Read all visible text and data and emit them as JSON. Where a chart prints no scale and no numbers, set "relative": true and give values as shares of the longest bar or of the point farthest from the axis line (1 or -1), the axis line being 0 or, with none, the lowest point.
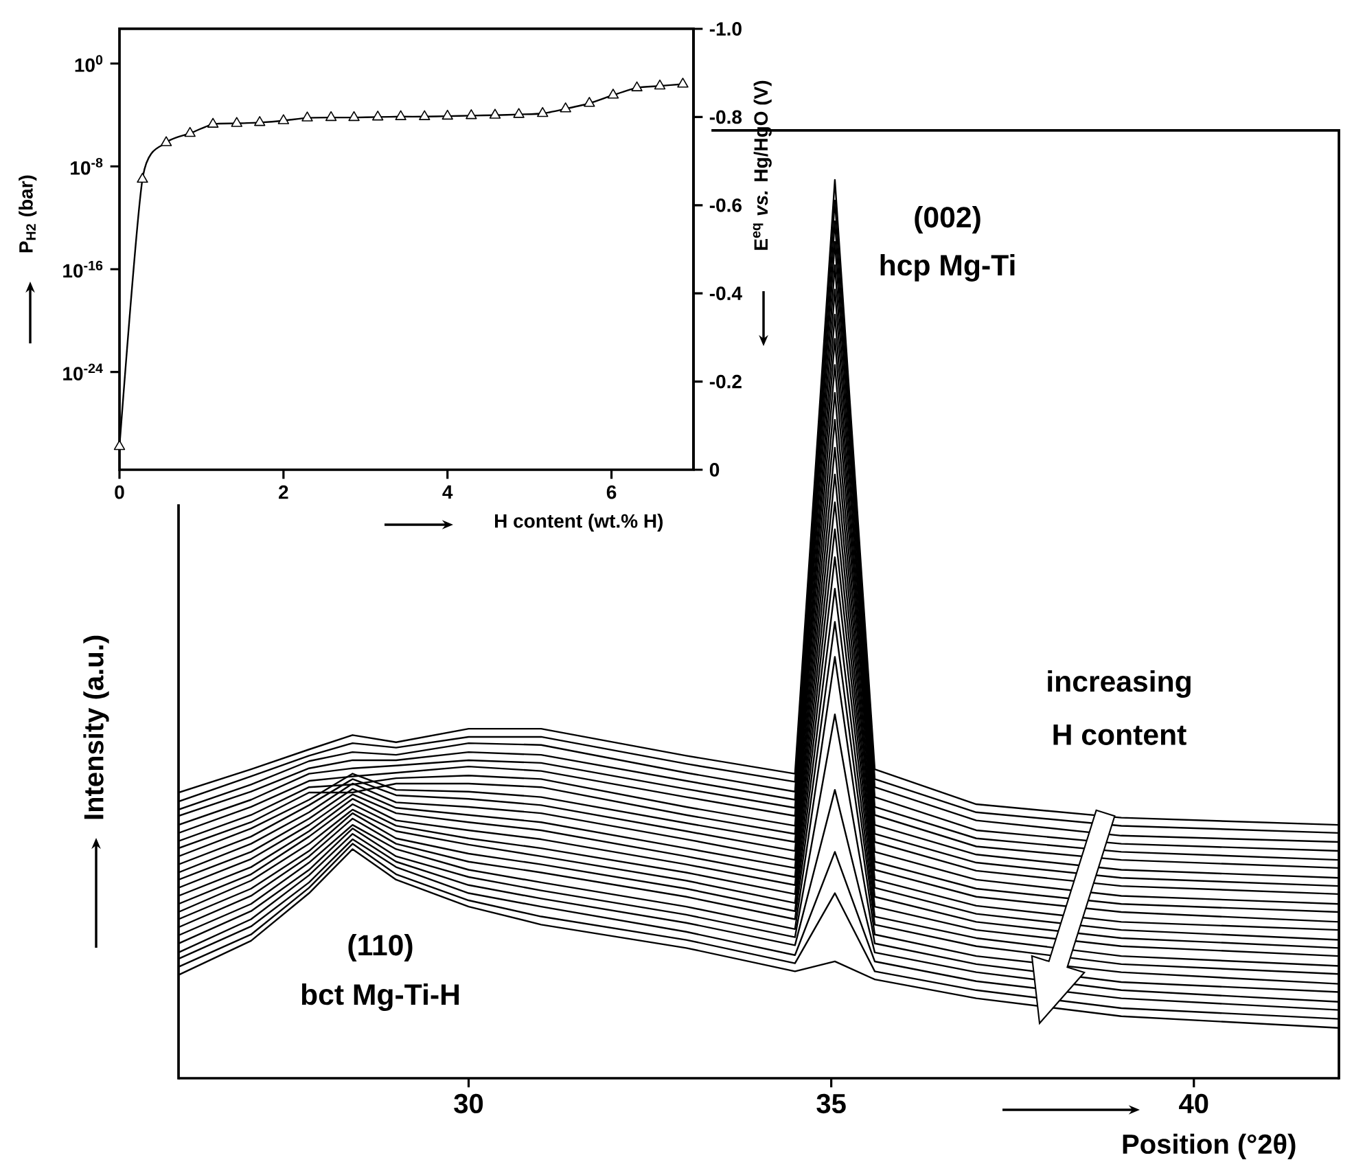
{
  "chart_data": [
    {
      "type": "line",
      "marker": "triangle",
      "log": "y",
      "xlabel": "H content (wt.% H)",
      "ylabel": "P$_{H2}$ (bar)",
      "y2label": "E$^{eq}$ *vs.* Hg/HgO (V)",
      "color": "#000000",
      "x": [
        0,
        0.28,
        0.57,
        0.86,
        1.14,
        1.43,
        1.71,
        2.0,
        2.29,
        2.58,
        2.86,
        3.15,
        3.43,
        3.72,
        4.0,
        4.29,
        4.58,
        4.87,
        5.16,
        5.44,
        5.73,
        6.02,
        6.31,
        6.59,
        6.87
      ],
      "values": [
        1.6e-30,
        1e-09,
        7e-07,
        3.7e-06,
        1.9e-05,
        2.2e-05,
        2.6e-05,
        3.6e-05,
        5.9e-05,
        6.3e-05,
        6.3e-05,
        6.9e-05,
        7.4e-05,
        7.4e-05,
        8.1e-05,
        8.9e-05,
        9.6e-05,
        0.00011,
        0.00013,
        0.0003,
        0.0008,
        0.0035,
        0.013,
        0.018,
        0.025
      ],
      "xlim": [
        0,
        7
      ],
      "xticks": [
        0,
        2,
        4,
        6
      ],
      "ylim": [
        2.5e-32,
        500
      ],
      "yticks": [
        {
          "value": 1,
          "label": "10$^{0}$"
        },
        {
          "value": 1e-08,
          "label": "10$^{-8}$"
        },
        {
          "value": 1e-16,
          "label": "10$^{-16}$"
        },
        {
          "value": 1e-24,
          "label": "10$^{-24}$"
        }
      ],
      "y2lim": [
        0,
        -1
      ],
      "y2ticks": [
        {
          "value": -1,
          "label": "-1.0"
        },
        -0.8,
        -0.6,
        -0.4,
        -0.2,
        0
      ]
    },
    {
      "type": "line",
      "relative": true,
      "xlabel": "Position (°2θ)",
      "ylabel": "Intensity (a.u.)",
      "color": "#000000",
      "x": [
        26,
        27,
        27.8,
        28.4,
        29,
        30,
        31,
        33,
        34.5,
        35.05,
        35.6,
        37,
        39,
        42
      ],
      "xlim": [
        26,
        42
      ],
      "xticks": [
        30,
        35,
        40
      ],
      "annotations": [
        "(002)",
        "hcp Mg-Ti",
        "(110)",
        "bct Mg-Ti-H",
        "increasing",
        "H content"
      ],
      "series": [
        {
          "values": [
            0.318,
            0.344,
            0.366,
            0.382,
            0.374,
            0.389,
            0.389,
            0.359,
            0.339,
            1,
            0.344,
            0.305,
            0.29,
            0.282
          ]
        },
        {
          "values": [
            0.308,
            0.336,
            0.359,
            0.373,
            0.368,
            0.38,
            0.38,
            0.35,
            0.33,
            0.977,
            0.333,
            0.296,
            0.281,
            0.273
          ]
        },
        {
          "values": [
            0.299,
            0.327,
            0.353,
            0.363,
            0.36,
            0.373,
            0.371,
            0.34,
            0.319,
            0.954,
            0.324,
            0.287,
            0.27,
            0.263
          ]
        },
        {
          "values": [
            0.292,
            0.319,
            0.345,
            0.354,
            0.354,
            0.363,
            0.36,
            0.331,
            0.31,
            0.931,
            0.313,
            0.276,
            0.261,
            0.253
          ]
        },
        {
          "values": [
            0.282,
            0.31,
            0.339,
            0.345,
            0.348,
            0.354,
            0.351,
            0.322,
            0.301,
            0.905,
            0.302,
            0.267,
            0.252,
            0.243
          ]
        },
        {
          "values": [
            0.273,
            0.302,
            0.331,
            0.336,
            0.34,
            0.347,
            0.342,
            0.313,
            0.292,
            0.878,
            0.293,
            0.258,
            0.243,
            0.234
          ]
        },
        {
          "values": [
            0.264,
            0.293,
            0.324,
            0.327,
            0.334,
            0.337,
            0.333,
            0.302,
            0.281,
            0.85,
            0.282,
            0.249,
            0.232,
            0.223
          ]
        },
        {
          "values": [
            0.256,
            0.285,
            0.318,
            0.318,
            0.328,
            0.328,
            0.324,
            0.293,
            0.272,
            0.823,
            0.272,
            0.24,
            0.223,
            0.214
          ]
        },
        {
          "values": [
            0.247,
            0.278,
            0.31,
            0.339,
            0.321,
            0.319,
            0.313,
            0.284,
            0.263,
            0.794,
            0.263,
            0.231,
            0.214,
            0.205
          ]
        },
        {
          "values": [
            0.238,
            0.269,
            0.304,
            0.333,
            0.315,
            0.311,
            0.304,
            0.275,
            0.253,
            0.763,
            0.252,
            0.221,
            0.203,
            0.194
          ]
        },
        {
          "values": [
            0.229,
            0.261,
            0.296,
            0.328,
            0.307,
            0.302,
            0.295,
            0.266,
            0.243,
            0.733,
            0.241,
            0.211,
            0.194,
            0.185
          ]
        },
        {
          "values": [
            0.221,
            0.252,
            0.289,
            0.322,
            0.301,
            0.293,
            0.285,
            0.256,
            0.234,
            0.702,
            0.232,
            0.202,
            0.185,
            0.174
          ]
        },
        {
          "values": [
            0.212,
            0.244,
            0.282,
            0.316,
            0.295,
            0.285,
            0.276,
            0.247,
            0.224,
            0.672,
            0.221,
            0.192,
            0.174,
            0.165
          ]
        },
        {
          "values": [
            0.203,
            0.235,
            0.275,
            0.311,
            0.287,
            0.276,
            0.266,
            0.238,
            0.215,
            0.641,
            0.212,
            0.183,
            0.165,
            0.154
          ]
        },
        {
          "values": [
            0.194,
            0.227,
            0.269,
            0.305,
            0.281,
            0.267,
            0.256,
            0.229,
            0.205,
            0.611,
            0.202,
            0.174,
            0.156,
            0.145
          ]
        },
        {
          "values": [
            0.185,
            0.22,
            0.261,
            0.299,
            0.275,
            0.26,
            0.247,
            0.22,
            0.195,
            0.58,
            0.191,
            0.165,
            0.147,
            0.136
          ]
        },
        {
          "values": [
            0.177,
            0.211,
            0.253,
            0.295,
            0.267,
            0.25,
            0.238,
            0.211,
            0.186,
            0.545,
            0.18,
            0.156,
            0.136,
            0.125
          ]
        },
        {
          "values": [
            0.168,
            0.203,
            0.247,
            0.289,
            0.261,
            0.241,
            0.229,
            0.202,
            0.177,
            0.508,
            0.171,
            0.147,
            0.127,
            0.116
          ]
        },
        {
          "values": [
            0.159,
            0.194,
            0.24,
            0.282,
            0.255,
            0.232,
            0.218,
            0.191,
            0.166,
            0.469,
            0.16,
            0.136,
            0.118,
            0.105
          ]
        },
        {
          "values": [
            0.15,
            0.186,
            0.232,
            0.278,
            0.247,
            0.224,
            0.209,
            0.182,
            0.157,
            0.405,
            0.15,
            0.127,
            0.107,
            0.096
          ]
        },
        {
          "values": [
            0.14,
            0.177,
            0.226,
            0.272,
            0.241,
            0.215,
            0.2,
            0.173,
            0.148,
            0.321,
            0.14,
            0.118,
            0.098,
            0.085
          ]
        },
        {
          "values": [
            0.133,
            0.169,
            0.218,
            0.266,
            0.235,
            0.206,
            0.191,
            0.163,
            0.137,
            0.252,
            0.13,
            0.108,
            0.089,
            0.076
          ]
        },
        {
          "values": [
            0.124,
            0.16,
            0.212,
            0.261,
            0.227,
            0.198,
            0.18,
            0.154,
            0.128,
            0.206,
            0.119,
            0.098,
            0.078,
            0.066
          ]
        },
        {
          "values": [
            0.115,
            0.153,
            0.206,
            0.255,
            0.221,
            0.191,
            0.171,
            0.145,
            0.119,
            0.13,
            0.11,
            0.089,
            0.069,
            0.056
          ]
        }
      ]
    }
  ]
}
